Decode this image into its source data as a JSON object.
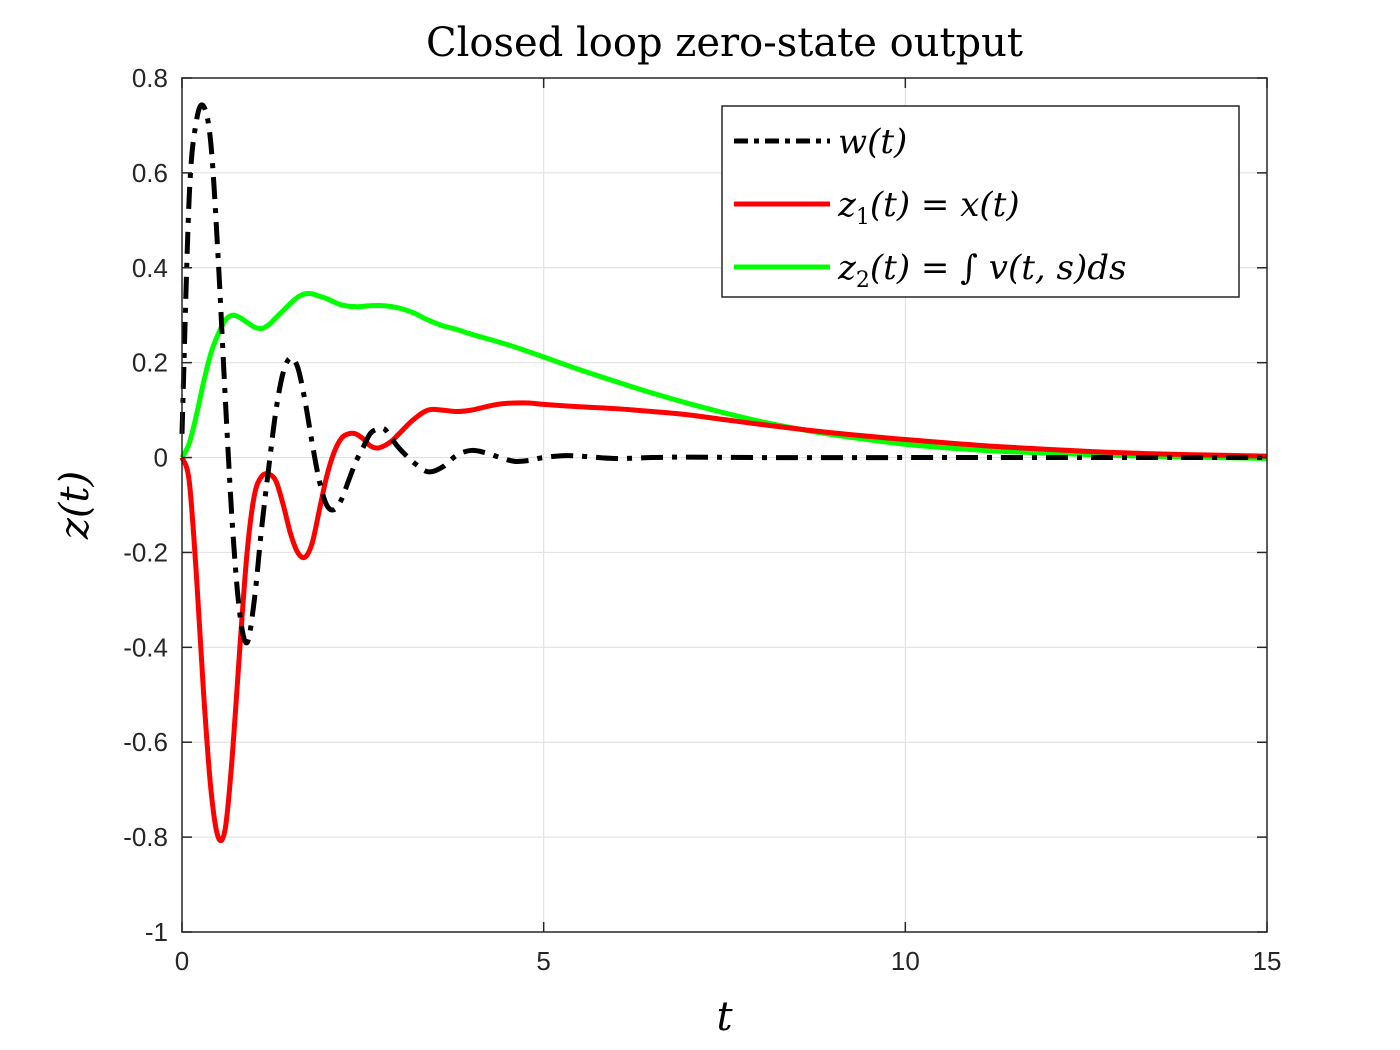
{
  "chart_data": {
    "type": "line",
    "title": "Closed loop zero-state output",
    "xlabel": "t",
    "ylabel": "z(t)",
    "xlim": [
      0,
      15
    ],
    "ylim": [
      -1,
      0.8
    ],
    "xticks": [
      0,
      5,
      10,
      15
    ],
    "xtick_labels": [
      "0",
      "5",
      "10",
      "15"
    ],
    "yticks": [
      -1,
      -0.8,
      -0.6,
      -0.4,
      -0.2,
      0,
      0.2,
      0.4,
      0.6,
      0.8
    ],
    "ytick_labels": [
      "-1",
      "-0.8",
      "-0.6",
      "-0.4",
      "-0.2",
      "0",
      "0.2",
      "0.4",
      "0.6",
      "0.8"
    ],
    "grid": true,
    "legend_position": "top-right",
    "series": [
      {
        "name": "w(t)",
        "legend": {
          "base": "w(t)",
          "sub": "",
          "rest": ""
        },
        "color": "#000000",
        "style": "dashdot",
        "x": [
          0,
          0.1,
          0.2,
          0.3,
          0.4,
          0.5,
          0.6,
          0.7,
          0.8,
          0.9,
          1.0,
          1.1,
          1.2,
          1.3,
          1.4,
          1.5,
          1.6,
          1.7,
          1.8,
          1.9,
          2.0,
          2.1,
          2.2,
          2.3,
          2.4,
          2.5,
          2.6,
          2.7,
          2.8,
          2.9,
          3.0,
          3.2,
          3.4,
          3.6,
          3.8,
          4.0,
          4.2,
          4.4,
          4.6,
          4.8,
          5.0,
          5.3,
          5.6,
          6.0,
          6.5,
          7.0,
          8.0,
          10.0,
          12.0,
          15.0
        ],
        "y": [
          0.05,
          0.55,
          0.71,
          0.74,
          0.66,
          0.42,
          0.12,
          -0.15,
          -0.33,
          -0.39,
          -0.3,
          -0.15,
          -0.02,
          0.1,
          0.18,
          0.21,
          0.19,
          0.12,
          0.03,
          -0.05,
          -0.1,
          -0.11,
          -0.09,
          -0.05,
          -0.01,
          0.02,
          0.05,
          0.06,
          0.06,
          0.04,
          0.02,
          -0.01,
          -0.03,
          -0.02,
          0.005,
          0.015,
          0.01,
          0.0,
          -0.008,
          -0.006,
          0.0,
          0.004,
          0.002,
          -0.002,
          0.0,
          0.001,
          0.0,
          0.0,
          0.0,
          0.0
        ]
      },
      {
        "name": "z1(t) = x(t)",
        "legend": {
          "base": "z",
          "sub": "1",
          "rest": "(t) = x(t)"
        },
        "color": "#ff0000",
        "style": "solid",
        "x": [
          0,
          0.1,
          0.2,
          0.3,
          0.4,
          0.5,
          0.6,
          0.7,
          0.8,
          0.9,
          1.0,
          1.1,
          1.2,
          1.3,
          1.4,
          1.5,
          1.6,
          1.7,
          1.8,
          1.9,
          2.0,
          2.1,
          2.2,
          2.3,
          2.4,
          2.5,
          2.6,
          2.7,
          2.8,
          2.9,
          3.0,
          3.2,
          3.4,
          3.6,
          3.8,
          4.0,
          4.2,
          4.4,
          4.6,
          4.8,
          5.0,
          5.5,
          6.0,
          6.5,
          7.0,
          7.5,
          8.0,
          9.0,
          10.0,
          11.0,
          12.0,
          13.0,
          14.0,
          15.0
        ],
        "y": [
          0.0,
          -0.05,
          -0.25,
          -0.5,
          -0.7,
          -0.8,
          -0.78,
          -0.62,
          -0.4,
          -0.2,
          -0.08,
          -0.04,
          -0.035,
          -0.05,
          -0.1,
          -0.16,
          -0.2,
          -0.21,
          -0.18,
          -0.11,
          -0.04,
          0.01,
          0.04,
          0.05,
          0.05,
          0.04,
          0.025,
          0.02,
          0.025,
          0.035,
          0.05,
          0.08,
          0.1,
          0.1,
          0.097,
          0.1,
          0.107,
          0.113,
          0.115,
          0.115,
          0.112,
          0.107,
          0.103,
          0.097,
          0.09,
          0.08,
          0.07,
          0.052,
          0.038,
          0.026,
          0.017,
          0.01,
          0.006,
          0.003
        ]
      },
      {
        "name": "z2(t) = ∫ v(t, s)ds",
        "legend": {
          "base": "z",
          "sub": "2",
          "rest": "(t) = ∫ v(t, s)ds"
        },
        "color": "#00ff00",
        "style": "solid",
        "x": [
          0,
          0.1,
          0.2,
          0.3,
          0.4,
          0.5,
          0.6,
          0.7,
          0.8,
          0.9,
          1.0,
          1.1,
          1.2,
          1.3,
          1.4,
          1.5,
          1.6,
          1.7,
          1.8,
          1.9,
          2.0,
          2.2,
          2.4,
          2.6,
          2.8,
          3.0,
          3.2,
          3.4,
          3.6,
          3.8,
          4.0,
          4.5,
          5.0,
          5.5,
          6.0,
          6.5,
          7.0,
          7.5,
          8.0,
          8.5,
          9.0,
          10.0,
          11.0,
          12.0,
          13.0,
          14.0,
          15.0
        ],
        "y": [
          0.0,
          0.03,
          0.09,
          0.16,
          0.22,
          0.26,
          0.29,
          0.3,
          0.295,
          0.285,
          0.275,
          0.272,
          0.28,
          0.295,
          0.31,
          0.325,
          0.338,
          0.345,
          0.345,
          0.34,
          0.335,
          0.322,
          0.318,
          0.32,
          0.32,
          0.315,
          0.305,
          0.29,
          0.278,
          0.27,
          0.26,
          0.238,
          0.212,
          0.185,
          0.16,
          0.136,
          0.114,
          0.094,
          0.076,
          0.061,
          0.048,
          0.028,
          0.016,
          0.009,
          0.004,
          0.001,
          -0.002
        ]
      }
    ]
  }
}
